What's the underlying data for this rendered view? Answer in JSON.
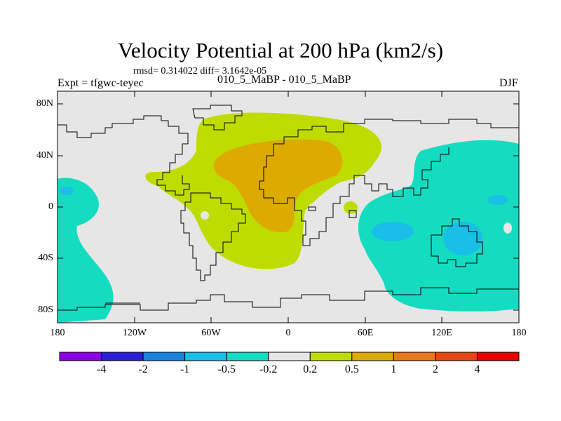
{
  "title": "Velocity Potential at 200 hPa (km2/s)",
  "stats": "rmsd= 0.314022  diff= 3.1642e-05",
  "experiment_label": "Expt = tfgwc-teyec",
  "experiments_compared": "010_5_MaBP - 010_5_MaBP",
  "season": "DJF",
  "lat_labels": [
    "80N",
    "40N",
    "0",
    "40S",
    "80S"
  ],
  "lon_labels": [
    "180",
    "120W",
    "60W",
    "0",
    "60E",
    "120E",
    "180"
  ],
  "colorbar": {
    "labels": [
      "-4",
      "-2",
      "-1",
      "-0.5",
      "-0.2",
      "0.2",
      "0.5",
      "1",
      "2",
      "4"
    ],
    "colors": [
      "#8a00e6",
      "#2a1fd6",
      "#1c82dc",
      "#19bfe6",
      "#13dcc0",
      "#e6e6e6",
      "#bfdc00",
      "#dcaa00",
      "#e6781e",
      "#e64614",
      "#e60000"
    ]
  },
  "colors": {
    "land_outline": "#000000",
    "neutral": "#e6e6e6"
  }
}
